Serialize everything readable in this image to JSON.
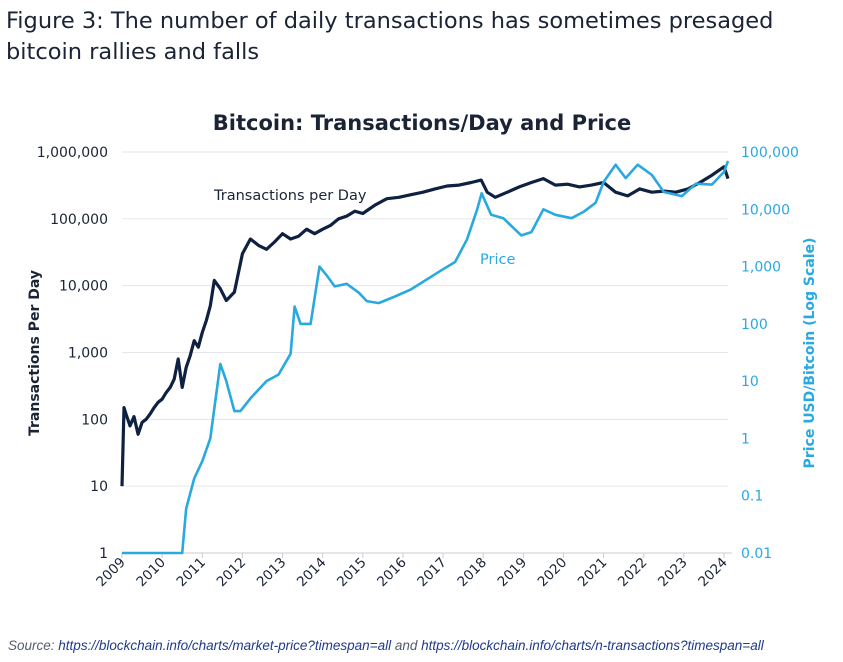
{
  "figure": {
    "title": "Figure 3: The number of daily transactions has sometimes presaged bitcoin rallies and falls",
    "source_label": "Source:",
    "source_url_1": "https://blockchain.info/charts/market-price?timespan=all",
    "source_and": "and",
    "source_url_2": "https://blockchain.info/charts/n-transactions?timespan=all"
  },
  "chart_data": {
    "type": "line",
    "title": "Bitcoin: Transactions/Day and Price",
    "ylabel": "Transactions Per Day",
    "y2label": "Price USD/Bitcoin (Log Scale)",
    "y_scale": "log",
    "y2_scale": "log",
    "ylim": [
      1,
      1000000
    ],
    "y2lim": [
      0.01,
      100000
    ],
    "xlim": [
      2009,
      2024.1
    ],
    "x_ticks": [
      "2009",
      "2010",
      "2011",
      "2012",
      "2013",
      "2014",
      "2015",
      "2016",
      "2017",
      "2018",
      "2019",
      "2020",
      "2021",
      "2022",
      "2023",
      "2024"
    ],
    "y_ticks": [
      "1",
      "10",
      "100",
      "1,000",
      "10,000",
      "100,000",
      "1,000,000"
    ],
    "y2_ticks": [
      "0.01",
      "0.1",
      "1",
      "10",
      "100",
      "1,000",
      "10,000",
      "100,000"
    ],
    "grid": true,
    "colors": {
      "transactions": "#0f2140",
      "price": "#29a9e0"
    },
    "series": [
      {
        "name": "Transactions per Day",
        "axis": "left",
        "x": [
          2009.0,
          2009.05,
          2009.1,
          2009.2,
          2009.3,
          2009.4,
          2009.5,
          2009.6,
          2009.7,
          2009.8,
          2009.9,
          2010.0,
          2010.1,
          2010.2,
          2010.3,
          2010.4,
          2010.5,
          2010.6,
          2010.7,
          2010.8,
          2010.9,
          2011.0,
          2011.1,
          2011.2,
          2011.3,
          2011.45,
          2011.6,
          2011.8,
          2012.0,
          2012.2,
          2012.4,
          2012.6,
          2012.8,
          2013.0,
          2013.2,
          2013.4,
          2013.6,
          2013.8,
          2014.0,
          2014.2,
          2014.4,
          2014.6,
          2014.8,
          2015.0,
          2015.3,
          2015.6,
          2015.9,
          2016.2,
          2016.5,
          2016.8,
          2017.1,
          2017.4,
          2017.7,
          2017.95,
          2018.1,
          2018.3,
          2018.6,
          2018.9,
          2019.2,
          2019.5,
          2019.8,
          2020.1,
          2020.4,
          2020.7,
          2021.0,
          2021.3,
          2021.6,
          2021.9,
          2022.2,
          2022.5,
          2022.8,
          2023.1,
          2023.4,
          2023.7,
          2024.0,
          2024.1
        ],
        "values": [
          10,
          150,
          120,
          80,
          110,
          60,
          90,
          100,
          120,
          150,
          180,
          200,
          250,
          300,
          400,
          800,
          300,
          600,
          900,
          1500,
          1200,
          2000,
          3000,
          5000,
          12000,
          9000,
          6000,
          8000,
          30000,
          50000,
          40000,
          35000,
          45000,
          60000,
          50000,
          55000,
          70000,
          60000,
          70000,
          80000,
          100000,
          110000,
          130000,
          120000,
          160000,
          200000,
          210000,
          230000,
          250000,
          280000,
          310000,
          320000,
          350000,
          380000,
          250000,
          210000,
          250000,
          300000,
          350000,
          400000,
          320000,
          330000,
          300000,
          320000,
          350000,
          250000,
          220000,
          280000,
          250000,
          260000,
          250000,
          280000,
          350000,
          450000,
          600000,
          400000
        ]
      },
      {
        "name": "Price",
        "axis": "right",
        "x": [
          2009.0,
          2010.0,
          2010.5,
          2010.6,
          2010.8,
          2011.0,
          2011.2,
          2011.45,
          2011.6,
          2011.8,
          2011.95,
          2012.2,
          2012.6,
          2012.9,
          2013.2,
          2013.3,
          2013.45,
          2013.7,
          2013.92,
          2014.1,
          2014.3,
          2014.6,
          2014.9,
          2015.1,
          2015.4,
          2015.8,
          2016.2,
          2016.6,
          2017.0,
          2017.3,
          2017.6,
          2017.85,
          2017.96,
          2018.2,
          2018.5,
          2018.95,
          2019.2,
          2019.5,
          2019.8,
          2020.2,
          2020.5,
          2020.8,
          2021.0,
          2021.3,
          2021.55,
          2021.85,
          2022.2,
          2022.5,
          2022.95,
          2023.3,
          2023.7,
          2024.0,
          2024.1
        ],
        "values": [
          0.01,
          0.01,
          0.01,
          0.06,
          0.2,
          0.4,
          1.0,
          20,
          10,
          3,
          3,
          5,
          10,
          13,
          30,
          200,
          100,
          100,
          1000,
          700,
          450,
          500,
          350,
          250,
          230,
          300,
          400,
          600,
          900,
          1200,
          3000,
          10000,
          19000,
          8000,
          7000,
          3500,
          4000,
          10000,
          8000,
          7000,
          9000,
          13000,
          30000,
          60000,
          35000,
          60000,
          40000,
          20000,
          17000,
          28000,
          27000,
          45000,
          70000
        ]
      }
    ]
  }
}
